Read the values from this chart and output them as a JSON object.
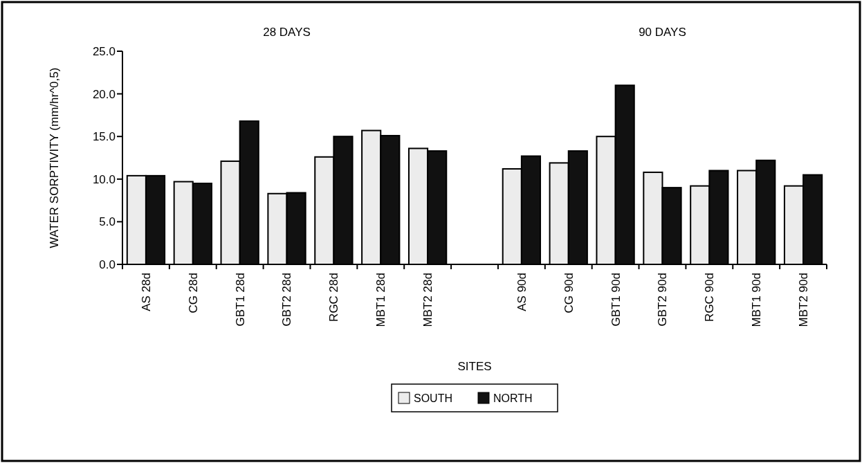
{
  "chart_data": {
    "type": "bar",
    "xlabel": "SITES",
    "ylabel": "WATER SORPTIVITY (mm/hr^0,5)",
    "annotations": [
      "28 DAYS",
      "90 DAYS"
    ],
    "categories": [
      "AS 28d",
      "CG 28d",
      "GBT1 28d",
      "GBT2 28d",
      "RGC 28d",
      "MBT1 28d",
      "MBT2 28d",
      null,
      "AS 90d",
      "CG 90d",
      "GBT1 90d",
      "GBT2 90d",
      "RGC 90d",
      "MBT1 90d",
      "MBT2 90d"
    ],
    "series": [
      {
        "name": "SOUTH",
        "color": "#ececec",
        "values": [
          10.4,
          9.7,
          12.1,
          8.3,
          12.6,
          15.7,
          13.6,
          null,
          11.2,
          11.9,
          15.0,
          10.8,
          9.2,
          11.0,
          9.2
        ]
      },
      {
        "name": "NORTH",
        "color": "#111111",
        "values": [
          10.4,
          9.5,
          16.8,
          8.4,
          15.0,
          15.1,
          13.3,
          null,
          12.7,
          13.3,
          21.0,
          9.0,
          11.0,
          12.2,
          10.5
        ]
      }
    ],
    "ylim": [
      0,
      25
    ],
    "yticks": [
      {
        "value": 0,
        "label": "0.0"
      },
      {
        "value": 5,
        "label": "5.0"
      },
      {
        "value": 10,
        "label": "10.0"
      },
      {
        "value": 15,
        "label": "15.0"
      },
      {
        "value": 20,
        "label": "20.0"
      },
      {
        "value": 25,
        "label": "25.0"
      }
    ],
    "grid": false,
    "legend": "bottom"
  }
}
